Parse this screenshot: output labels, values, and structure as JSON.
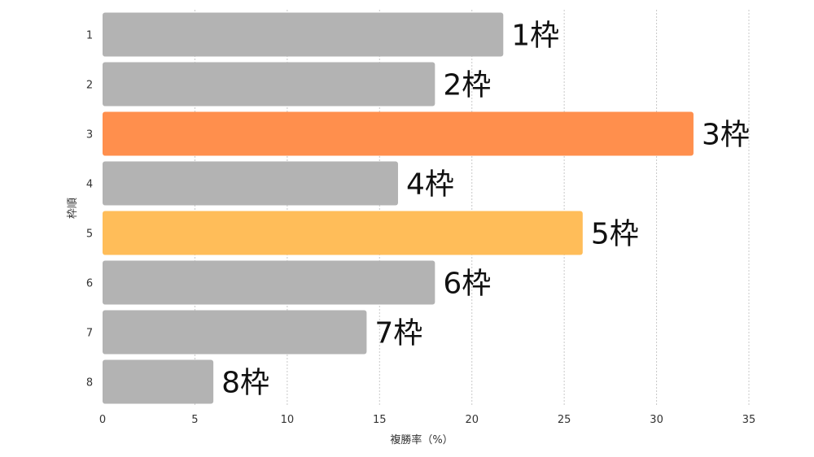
{
  "chart_data": {
    "type": "bar",
    "orientation": "horizontal",
    "title": "",
    "xlabel": "複勝率（%）",
    "ylabel": "枠順",
    "xlim": [
      0,
      35
    ],
    "x_ticks": [
      "0",
      "5",
      "10",
      "15",
      "20",
      "25",
      "30",
      "35"
    ],
    "x_tick_values": [
      0,
      5,
      10,
      15,
      20,
      25,
      30,
      35
    ],
    "grid": "vertical dashed",
    "legend": "none",
    "categories": [
      "1",
      "2",
      "3",
      "4",
      "5",
      "6",
      "7",
      "8"
    ],
    "values": [
      21.7,
      18.0,
      32.0,
      16.0,
      26.0,
      18.0,
      14.3,
      6.0
    ],
    "data_labels": [
      "1枠",
      "2枠",
      "3枠",
      "4枠",
      "5枠",
      "6枠",
      "7枠",
      "8枠"
    ],
    "bar_colors": [
      "#b3b3b3",
      "#b3b3b3",
      "#ff8f4d",
      "#b3b3b3",
      "#ffbd59",
      "#b3b3b3",
      "#b3b3b3",
      "#b3b3b3"
    ],
    "grid_color": "#c8c8c8"
  }
}
